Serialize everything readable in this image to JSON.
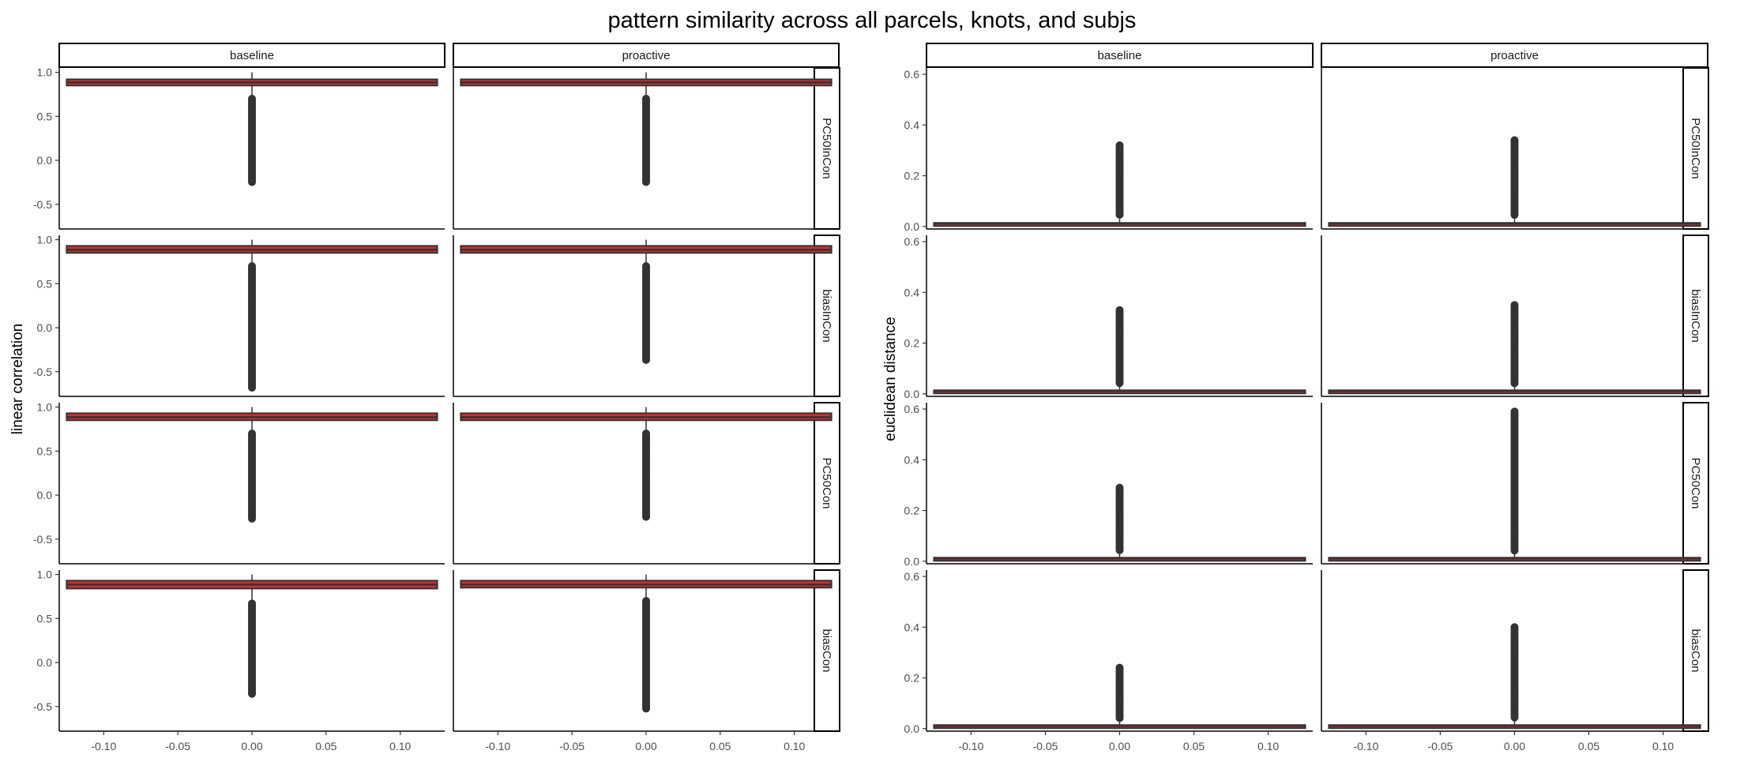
{
  "title": "pattern similarity across all parcels, knots, and subjs",
  "colors": {
    "box_fill": "#cc2f2f",
    "box_edge": "#333333",
    "points": "#333333",
    "frame": "#000000",
    "axis_text": "#4d4d4d",
    "strip_bg": "#ffffff"
  },
  "chart_data": [
    {
      "type": "box",
      "ylabel": "linear correlation",
      "xlim": [
        -0.13,
        0.13
      ],
      "ylim": [
        -0.78,
        1.05
      ],
      "x_ticks": [
        -0.1,
        -0.05,
        0.0,
        0.05,
        0.1
      ],
      "x_tick_labels": [
        "-0.10",
        "-0.05",
        "0.00",
        "0.05",
        "0.10"
      ],
      "y_ticks": [
        -0.5,
        0.0,
        0.5,
        1.0
      ],
      "y_tick_labels": [
        "-0.5",
        "0.0",
        "0.5",
        "1.0"
      ],
      "columns": [
        "baseline",
        "proactive"
      ],
      "rows": [
        "PC50InCon",
        "biasInCon",
        "PC50Con",
        "biasCon"
      ],
      "box_x": [
        -0.125,
        0.125
      ],
      "panels": [
        {
          "row": "PC50InCon",
          "col": "baseline",
          "q1": 0.85,
          "median": 0.885,
          "q3": 0.92,
          "whisker_lo": 0.71,
          "whisker_hi": 1.0,
          "outliers_lo": 0.7,
          "outliers_hi": -0.26
        },
        {
          "row": "PC50InCon",
          "col": "proactive",
          "q1": 0.85,
          "median": 0.885,
          "q3": 0.92,
          "whisker_lo": 0.71,
          "whisker_hi": 1.0,
          "outliers_lo": 0.7,
          "outliers_hi": -0.26
        },
        {
          "row": "biasInCon",
          "col": "baseline",
          "q1": 0.85,
          "median": 0.885,
          "q3": 0.93,
          "whisker_lo": 0.71,
          "whisker_hi": 1.0,
          "outliers_lo": 0.7,
          "outliers_hi": -0.69
        },
        {
          "row": "biasInCon",
          "col": "proactive",
          "q1": 0.85,
          "median": 0.885,
          "q3": 0.93,
          "whisker_lo": 0.71,
          "whisker_hi": 1.0,
          "outliers_lo": 0.7,
          "outliers_hi": -0.37
        },
        {
          "row": "PC50Con",
          "col": "baseline",
          "q1": 0.85,
          "median": 0.885,
          "q3": 0.93,
          "whisker_lo": 0.71,
          "whisker_hi": 1.0,
          "outliers_lo": 0.7,
          "outliers_hi": -0.28
        },
        {
          "row": "PC50Con",
          "col": "proactive",
          "q1": 0.85,
          "median": 0.885,
          "q3": 0.93,
          "whisker_lo": 0.71,
          "whisker_hi": 1.0,
          "outliers_lo": 0.7,
          "outliers_hi": -0.25
        },
        {
          "row": "biasCon",
          "col": "baseline",
          "q1": 0.84,
          "median": 0.885,
          "q3": 0.93,
          "whisker_lo": 0.68,
          "whisker_hi": 1.0,
          "outliers_lo": 0.67,
          "outliers_hi": -0.36
        },
        {
          "row": "biasCon",
          "col": "proactive",
          "q1": 0.85,
          "median": 0.885,
          "q3": 0.93,
          "whisker_lo": 0.71,
          "whisker_hi": 1.0,
          "outliers_lo": 0.7,
          "outliers_hi": -0.53
        }
      ]
    },
    {
      "type": "box",
      "ylabel": "euclidean distance",
      "xlim": [
        -0.13,
        0.13
      ],
      "ylim": [
        -0.01,
        0.625
      ],
      "x_ticks": [
        -0.1,
        -0.05,
        0.0,
        0.05,
        0.1
      ],
      "x_tick_labels": [
        "-0.10",
        "-0.05",
        "0.00",
        "0.05",
        "0.10"
      ],
      "y_ticks": [
        0.0,
        0.2,
        0.4,
        0.6
      ],
      "y_tick_labels": [
        "0.0",
        "0.2",
        "0.4",
        "0.6"
      ],
      "columns": [
        "baseline",
        "proactive"
      ],
      "rows": [
        "PC50InCon",
        "biasInCon",
        "PC50Con",
        "biasCon"
      ],
      "box_x": [
        -0.125,
        0.125
      ],
      "panels": [
        {
          "row": "PC50InCon",
          "col": "baseline",
          "q1": 0.008,
          "median": 0.011,
          "q3": 0.014,
          "whisker_lo": 0.004,
          "whisker_hi": 0.03,
          "outliers_lo": 0.04,
          "outliers_hi": 0.32
        },
        {
          "row": "PC50InCon",
          "col": "proactive",
          "q1": 0.008,
          "median": 0.011,
          "q3": 0.014,
          "whisker_lo": 0.004,
          "whisker_hi": 0.03,
          "outliers_lo": 0.04,
          "outliers_hi": 0.34
        },
        {
          "row": "biasInCon",
          "col": "baseline",
          "q1": 0.008,
          "median": 0.011,
          "q3": 0.014,
          "whisker_lo": 0.004,
          "whisker_hi": 0.03,
          "outliers_lo": 0.04,
          "outliers_hi": 0.33
        },
        {
          "row": "biasInCon",
          "col": "proactive",
          "q1": 0.008,
          "median": 0.011,
          "q3": 0.014,
          "whisker_lo": 0.004,
          "whisker_hi": 0.03,
          "outliers_lo": 0.04,
          "outliers_hi": 0.35
        },
        {
          "row": "PC50Con",
          "col": "baseline",
          "q1": 0.008,
          "median": 0.011,
          "q3": 0.014,
          "whisker_lo": 0.004,
          "whisker_hi": 0.03,
          "outliers_lo": 0.04,
          "outliers_hi": 0.29
        },
        {
          "row": "PC50Con",
          "col": "proactive",
          "q1": 0.008,
          "median": 0.011,
          "q3": 0.014,
          "whisker_lo": 0.004,
          "whisker_hi": 0.03,
          "outliers_lo": 0.04,
          "outliers_hi": 0.59
        },
        {
          "row": "biasCon",
          "col": "baseline",
          "q1": 0.008,
          "median": 0.011,
          "q3": 0.014,
          "whisker_lo": 0.004,
          "whisker_hi": 0.03,
          "outliers_lo": 0.04,
          "outliers_hi": 0.24
        },
        {
          "row": "biasCon",
          "col": "proactive",
          "q1": 0.008,
          "median": 0.011,
          "q3": 0.014,
          "whisker_lo": 0.004,
          "whisker_hi": 0.03,
          "outliers_lo": 0.04,
          "outliers_hi": 0.4
        }
      ]
    }
  ]
}
